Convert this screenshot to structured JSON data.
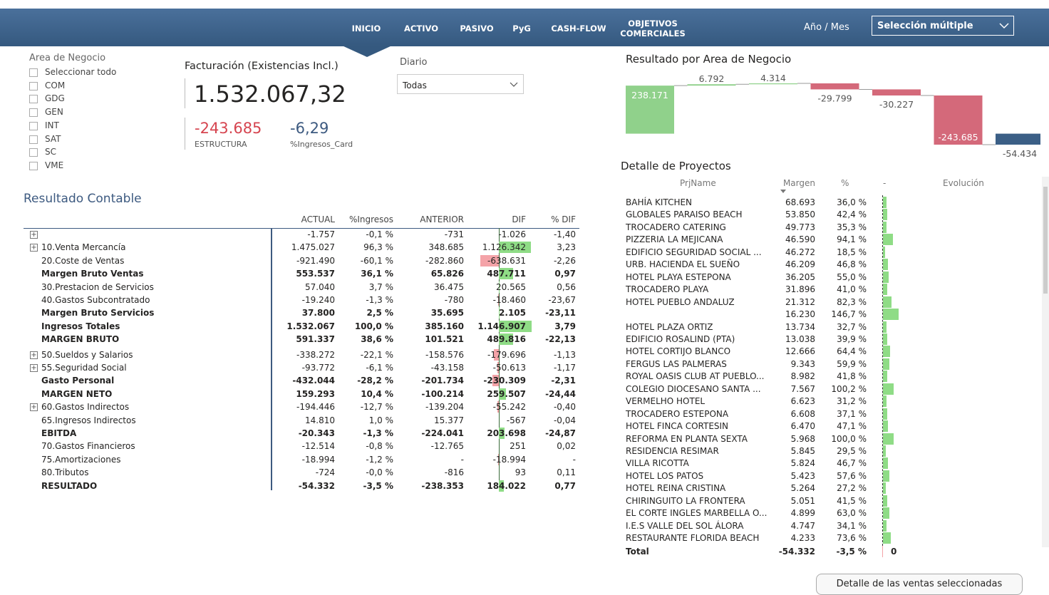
{
  "nav": {
    "items": [
      "INICIO",
      "ACTIVO",
      "PASIVO",
      "PyG",
      "CASH-FLOW",
      "OBJETIVOS COMERCIALES"
    ],
    "period_label": "Año / Mes",
    "period_select": "Selección múltiple"
  },
  "filter": {
    "title": "Area de Negocio",
    "options": [
      "Seleccionar todo",
      "COM",
      "GDG",
      "GEN",
      "INT",
      "SAT",
      "SC",
      "VME"
    ]
  },
  "kpi": {
    "title": "Facturación (Existencias Incl.)",
    "value": "1.532.067,32",
    "secondary": [
      {
        "value": "-243.685",
        "label": "ESTRUCTURA"
      },
      {
        "value": "-6,29",
        "label": "%Ingresos_Card"
      }
    ]
  },
  "diario": {
    "title": "Diario",
    "selected": "Todas"
  },
  "result_table": {
    "title": "Resultado Contable",
    "columns": [
      "ACTUAL",
      "%Ingresos",
      "ANTERIOR",
      "DIF",
      "% DIF"
    ],
    "rows": [
      {
        "name": null,
        "expandable": true,
        "actual": "-1.757",
        "pct": "-0,1 %",
        "anterior": "-731",
        "dif": {
          "value": -1026,
          "label": "-1.026"
        },
        "pct_dif": "-1,40"
      },
      {
        "name": "10.Venta Mercancía",
        "expandable": true,
        "actual": "1.475.027",
        "pct": "96,3 %",
        "anterior": "348.685",
        "dif": {
          "value": 1126342,
          "label": "1.126.342"
        },
        "pct_dif": "3,23"
      },
      {
        "name": "20.Coste de Ventas",
        "actual": "-921.490",
        "pct": "-60,1 %",
        "anterior": "-282.860",
        "dif": {
          "value": -638631,
          "label": "-638.631"
        },
        "pct_dif": "-2,26"
      },
      {
        "name": "Margen Bruto Ventas",
        "bold": true,
        "actual": "553.537",
        "pct": "36,1 %",
        "anterior": "65.826",
        "dif": {
          "value": 487711,
          "label": "487.711"
        },
        "pct_dif": "0,97"
      },
      {
        "name": "30.Prestacion de Servicios",
        "actual": "57.040",
        "pct": "3,7 %",
        "anterior": "36.475",
        "dif": {
          "value": 20565,
          "label": "20.565"
        },
        "pct_dif": "0,56"
      },
      {
        "name": "40.Gastos Subcontratado",
        "actual": "-19.240",
        "pct": "-1,3 %",
        "anterior": "-780",
        "dif": {
          "value": -18460,
          "label": "-18.460"
        },
        "pct_dif": "-23,67"
      },
      {
        "name": "Margen Bruto Servicios",
        "bold": true,
        "actual": "37.800",
        "pct": "2,5 %",
        "anterior": "35.695",
        "dif": {
          "value": 2105,
          "label": "2.105"
        },
        "pct_dif": "-23,11"
      },
      {
        "name": "Ingresos Totales",
        "bold": true,
        "actual": "1.532.067",
        "pct": "100,0 %",
        "anterior": "385.160",
        "dif": {
          "value": 1146907,
          "label": "1.146.907"
        },
        "pct_dif": "3,79"
      },
      {
        "name": "MARGEN BRUTO",
        "bold": true,
        "actual": "591.337",
        "pct": "38,6 %",
        "anterior": "101.521",
        "dif": {
          "value": 489816,
          "label": "489.816"
        },
        "pct_dif": "-22,13"
      },
      {
        "name": "50.Sueldos y Salarios",
        "expandable": true,
        "actual": "-338.272",
        "pct": "-22,1 %",
        "anterior": "-158.576",
        "dif": {
          "value": -179696,
          "label": "-179.696"
        },
        "pct_dif": "-1,13"
      },
      {
        "name": "55.Seguridad Social",
        "expandable": true,
        "actual": "-93.772",
        "pct": "-6,1 %",
        "anterior": "-43.158",
        "dif": {
          "value": -50613,
          "label": "-50.613"
        },
        "pct_dif": "-1,17"
      },
      {
        "name": "Gasto Personal",
        "bold": true,
        "actual": "-432.044",
        "pct": "-28,2 %",
        "anterior": "-201.734",
        "dif": {
          "value": -230309,
          "label": "-230.309"
        },
        "pct_dif": "-2,31"
      },
      {
        "name": "MARGEN NETO",
        "bold": true,
        "actual": "159.293",
        "pct": "10,4 %",
        "anterior": "-100.214",
        "dif": {
          "value": 259507,
          "label": "259.507"
        },
        "pct_dif": "-24,44"
      },
      {
        "name": "60.Gastos Indirectos",
        "expandable": true,
        "actual": "-194.446",
        "pct": "-12,7 %",
        "anterior": "-139.204",
        "dif": {
          "value": -55242,
          "label": "-55.242"
        },
        "pct_dif": "-0,40"
      },
      {
        "name": "65.Ingresos Indirectos",
        "actual": "14.810",
        "pct": "1,0 %",
        "anterior": "15.377",
        "dif": {
          "value": -567,
          "label": "-567"
        },
        "pct_dif": "-0,04"
      },
      {
        "name": "EBITDA",
        "bold": true,
        "actual": "-20.343",
        "pct": "-1,3 %",
        "anterior": "-224.041",
        "dif": {
          "value": 203698,
          "label": "203.698"
        },
        "pct_dif": "-24,87"
      },
      {
        "name": "70.Gastos Financieros",
        "actual": "-12.514",
        "pct": "-0,8 %",
        "anterior": "-12.765",
        "dif": {
          "value": 251,
          "label": "251"
        },
        "pct_dif": "0,02"
      },
      {
        "name": "75.Amortizaciones",
        "actual": "-18.994",
        "pct": "-1,2 %",
        "anterior": "-",
        "dif": {
          "value": -18994,
          "label": "-18.994"
        },
        "pct_dif": "-"
      },
      {
        "name": "80.Tributos",
        "actual": "-724",
        "pct": "-0,0 %",
        "anterior": "-816",
        "dif": {
          "value": 93,
          "label": "93"
        },
        "pct_dif": "0,11"
      },
      {
        "name": "RESULTADO",
        "bold": true,
        "actual": "-54.332",
        "pct": "-3,5 %",
        "anterior": "-238.353",
        "dif": {
          "value": 184022,
          "label": "184.022"
        },
        "pct_dif": "0,77"
      }
    ]
  },
  "chart_data": {
    "type": "waterfall",
    "title": "Resultado por Area de Negocio",
    "categories": [
      null,
      null,
      null,
      null,
      null,
      null,
      null
    ],
    "values": [
      238171,
      6792,
      4314,
      -29799,
      -30227,
      -243685,
      -54434
    ],
    "value_labels": [
      "238.171",
      "6.792",
      "4.314",
      "-29.799",
      "-30.227",
      "-243.685",
      "-54.434"
    ],
    "total_last": true,
    "colors": {
      "increase": "#90d18b",
      "decrease": "#d4697a",
      "total": "#3b5f86"
    }
  },
  "projects": {
    "title": "Detalle de Proyectos",
    "columns": [
      "PrjName",
      "Margen",
      "%",
      "-",
      "Evolución"
    ],
    "rows": [
      {
        "name": "BAHÍA KITCHEN",
        "margen": "68.693",
        "pct": {
          "value": 36.0,
          "label": "36,0 %"
        }
      },
      {
        "name": "GLOBALES PARAISO BEACH",
        "margen": "53.850",
        "pct": {
          "value": 42.4,
          "label": "42,4 %"
        }
      },
      {
        "name": "TROCADERO CATERING",
        "margen": "49.773",
        "pct": {
          "value": 35.3,
          "label": "35,3 %"
        }
      },
      {
        "name": "PIZZERIA LA MEJICANA",
        "margen": "46.590",
        "pct": {
          "value": 94.1,
          "label": "94,1 %"
        }
      },
      {
        "name": "EDIFICIO SEGURIDAD SOCIAL ...",
        "margen": "46.272",
        "pct": {
          "value": 18.5,
          "label": "18,5 %"
        }
      },
      {
        "name": "URB. HACIENDA EL SUEÑO",
        "margen": "46.209",
        "pct": {
          "value": 46.8,
          "label": "46,8 %"
        }
      },
      {
        "name": "HOTEL PLAYA ESTEPONA",
        "margen": "36.205",
        "pct": {
          "value": 55.0,
          "label": "55,0 %"
        }
      },
      {
        "name": "TROCADERO PLAYA",
        "margen": "31.896",
        "pct": {
          "value": 41.0,
          "label": "41,0 %"
        }
      },
      {
        "name": "HOTEL PUEBLO ANDALUZ",
        "margen": "21.312",
        "pct": {
          "value": 82.3,
          "label": "82,3 %"
        }
      },
      {
        "name": null,
        "margen": "16.230",
        "pct": {
          "value": 146.7,
          "label": "146,7 %"
        }
      },
      {
        "name": "HOTEL PLAZA ORTIZ",
        "margen": "13.734",
        "pct": {
          "value": 32.7,
          "label": "32,7 %"
        }
      },
      {
        "name": "EDIFICIO ROSALIND (PTA)",
        "margen": "13.038",
        "pct": {
          "value": 39.9,
          "label": "39,9 %"
        }
      },
      {
        "name": "HOTEL CORTIJO BLANCO",
        "margen": "12.666",
        "pct": {
          "value": 64.4,
          "label": "64,4 %"
        }
      },
      {
        "name": "FERGUS LAS PALMERAS",
        "margen": "9.343",
        "pct": {
          "value": 59.9,
          "label": "59,9 %"
        }
      },
      {
        "name": "ROYAL OASIS CLUB AT PUEBLO...",
        "margen": "8.982",
        "pct": {
          "value": 41.8,
          "label": "41,8 %"
        }
      },
      {
        "name": "COLEGIO DIOCESANO SANTA ...",
        "margen": "7.567",
        "pct": {
          "value": 100.2,
          "label": "100,2 %"
        }
      },
      {
        "name": "VERMELHO HOTEL",
        "margen": "6.623",
        "pct": {
          "value": 31.2,
          "label": "31,2 %"
        }
      },
      {
        "name": "TROCADERO ESTEPONA",
        "margen": "6.608",
        "pct": {
          "value": 37.1,
          "label": "37,1 %"
        }
      },
      {
        "name": "HOTEL FINCA CORTESIN",
        "margen": "6.470",
        "pct": {
          "value": 47.1,
          "label": "47,1 %"
        }
      },
      {
        "name": "REFORMA EN PLANTA SEXTA",
        "margen": "5.968",
        "pct": {
          "value": 100.0,
          "label": "100,0 %"
        }
      },
      {
        "name": "RESIDENCIA RESIMAR",
        "margen": "5.845",
        "pct": {
          "value": 29.5,
          "label": "29,5 %"
        }
      },
      {
        "name": "VILLA RICOTTA",
        "margen": "5.824",
        "pct": {
          "value": 46.7,
          "label": "46,7 %"
        }
      },
      {
        "name": "HOTEL LOS PATOS",
        "margen": "5.423",
        "pct": {
          "value": 57.6,
          "label": "57,6 %"
        }
      },
      {
        "name": "HOTEL REINA CRISTINA",
        "margen": "5.264",
        "pct": {
          "value": 27.2,
          "label": "27,2 %"
        }
      },
      {
        "name": "CHIRINGUITO LA FRONTERA",
        "margen": "5.051",
        "pct": {
          "value": 41.5,
          "label": "41,5 %"
        }
      },
      {
        "name": "EL CORTE INGLES MARBELLA O...",
        "margen": "4.899",
        "pct": {
          "value": 63.0,
          "label": "63,0 %"
        }
      },
      {
        "name": "I.E.S VALLE DEL SOL ÁLORA",
        "margen": "4.747",
        "pct": {
          "value": 34.1,
          "label": "34,1 %"
        }
      },
      {
        "name": "RESTAURANTE FLORIDA BEACH",
        "margen": "4.233",
        "pct": {
          "value": 73.6,
          "label": "73,6 %"
        }
      }
    ],
    "total": {
      "name": "Total",
      "margen": "-54.332",
      "pct": {
        "value": -3.5,
        "label": "-3,5 %"
      },
      "bar": "0"
    }
  },
  "button": "Detalle de las ventas seleccionadas"
}
